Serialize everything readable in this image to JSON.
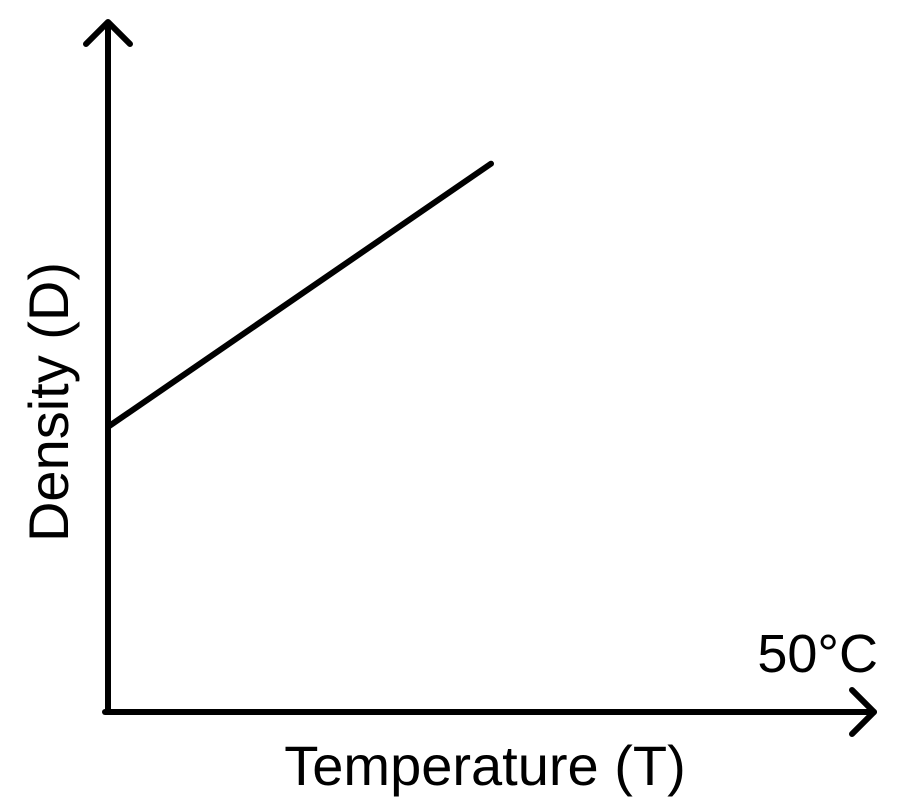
{
  "chart_data": {
    "type": "line",
    "title": "",
    "xlabel": "Temperature (T)",
    "ylabel": "Density (D)",
    "annotations": [
      "50°C"
    ],
    "grid": false,
    "legend": "none",
    "series": [
      {
        "x": [
          0,
          1
        ],
        "y": [
          0.52,
          1.0
        ]
      }
    ],
    "xlim": [
      0,
      2
    ],
    "ylim": [
      0,
      1.2
    ],
    "colors": {
      "axis": "#000000",
      "line": "#000000",
      "background": "#ffffff"
    }
  }
}
